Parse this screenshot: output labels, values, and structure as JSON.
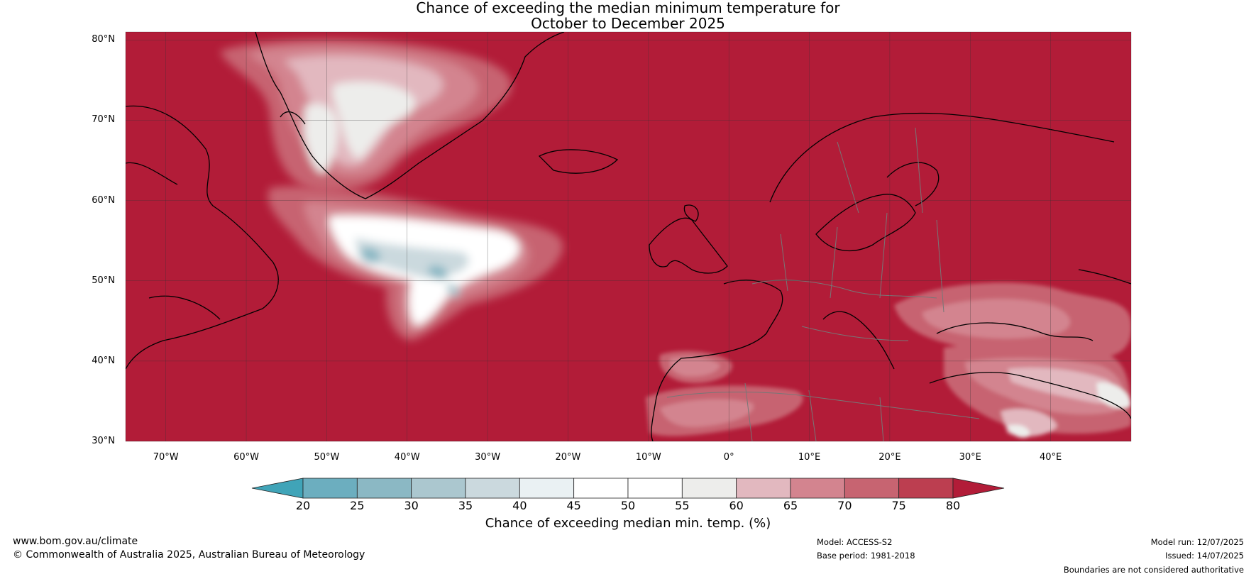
{
  "title": {
    "line1": "Chance of exceeding the median minimum temperature for",
    "line2": "October to December 2025"
  },
  "map": {
    "lat_ticks": [
      "80°N",
      "70°N",
      "60°N",
      "50°N",
      "40°N",
      "30°N"
    ],
    "lon_ticks": [
      "70°W",
      "60°W",
      "50°W",
      "40°W",
      "30°W",
      "20°W",
      "10°W",
      "0°",
      "10°E",
      "20°E",
      "30°E",
      "40°E"
    ],
    "extent": {
      "lon": [
        -75,
        50
      ],
      "lat": [
        30,
        81
      ]
    },
    "background_color": "#b21c38"
  },
  "colorbar": {
    "ticks": [
      "20",
      "25",
      "30",
      "35",
      "40",
      "45",
      "50",
      "55",
      "60",
      "65",
      "70",
      "75",
      "80"
    ],
    "colors": [
      "#40a4b8",
      "#6caebf",
      "#8bb8c4",
      "#abc7cf",
      "#cbd9de",
      "#eaf1f3",
      "#ffffff",
      "#ffffff",
      "#ededeb",
      "#e2b8bf",
      "#d3848f",
      "#c76471",
      "#bc3e50",
      "#b21c38"
    ],
    "label": "Chance of exceeding median min. temp. (%)"
  },
  "footer": {
    "url": "www.bom.gov.au/climate",
    "copyright": "© Commonwealth of Australia 2025, Australian Bureau of Meteorology",
    "model": "Model: ACCESS-S2",
    "base_period": "Base period: 1981-2018",
    "model_run": "Model run: 12/07/2025",
    "issued": "Issued: 14/07/2025",
    "disclaimer": "Boundaries are not considered authoritative"
  }
}
